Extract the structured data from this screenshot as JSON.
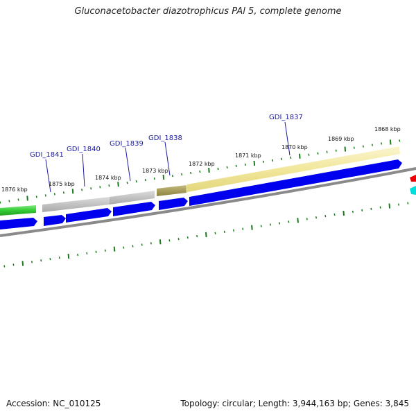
{
  "title": "Gluconacetobacter diazotrophicus PAl 5, complete genome",
  "footer": {
    "accession": "Accession: NC_010125",
    "topology": "Topology: circular; Length: 3,944,163 bp; Genes: 3,845"
  },
  "ruler": {
    "labels": [
      "1876 kbp",
      "1875 kbp",
      "1874 kbp",
      "1873 kbp",
      "1872 kbp",
      "1871 kbp",
      "1870 kbp",
      "1869 kbp",
      "1868 kbp"
    ]
  },
  "gene_labels": [
    "GDI_1841",
    "GDI_1840",
    "GDI_1839",
    "GDI_1838",
    "GDI_1837"
  ],
  "colors": {
    "cds_forward": "#0000ee",
    "backbone": "#808080",
    "tick": "#1a7a1a",
    "feature_green": "#33cc33",
    "feature_gray": "#bcbcbc",
    "feature_olive": "#a89d5c",
    "feature_yellow": "#f2e79c",
    "label_blue": "#1a1aa0",
    "offscreen_red": "#ee0000",
    "offscreen_cyan": "#00dddd"
  }
}
